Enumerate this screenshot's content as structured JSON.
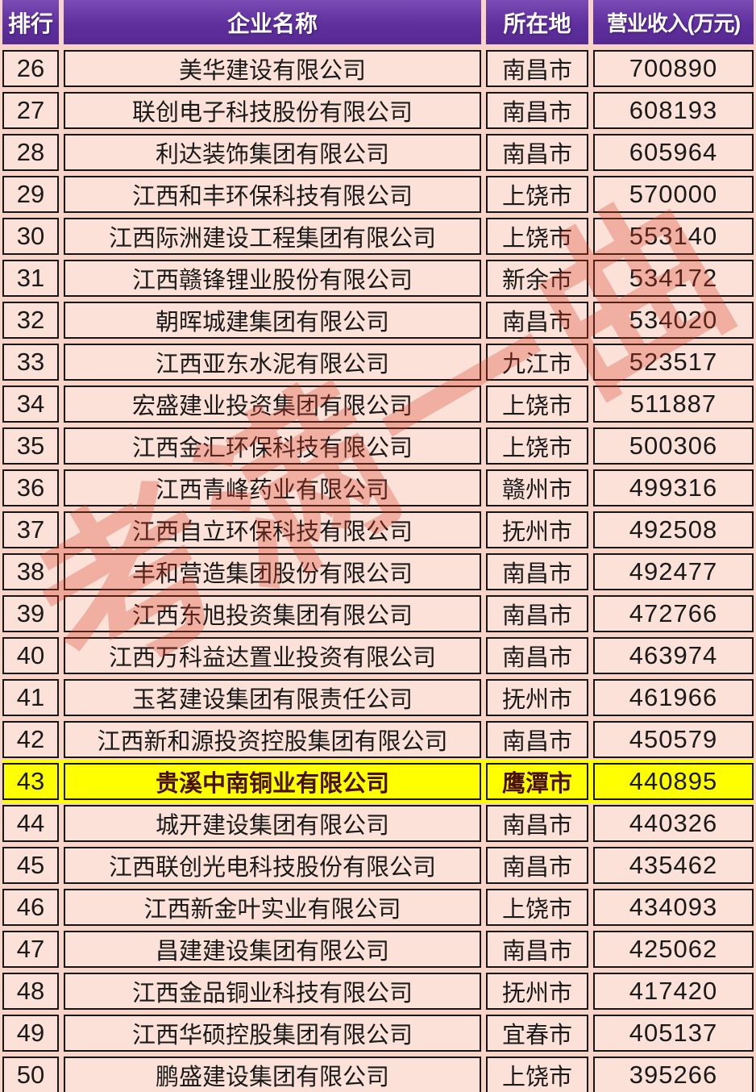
{
  "table": {
    "columns": [
      "排行",
      "企业名称",
      "所在地",
      "营业收入(万元)"
    ],
    "rows": [
      {
        "rank": "26",
        "company": "美华建设有限公司",
        "city": "南昌市",
        "revenue": "700890",
        "highlight": false
      },
      {
        "rank": "27",
        "company": "联创电子科技股份有限公司",
        "city": "南昌市",
        "revenue": "608193",
        "highlight": false
      },
      {
        "rank": "28",
        "company": "利达装饰集团有限公司",
        "city": "南昌市",
        "revenue": "605964",
        "highlight": false
      },
      {
        "rank": "29",
        "company": "江西和丰环保科技有限公司",
        "city": "上饶市",
        "revenue": "570000",
        "highlight": false
      },
      {
        "rank": "30",
        "company": "江西际洲建设工程集团有限公司",
        "city": "上饶市",
        "revenue": "553140",
        "highlight": false
      },
      {
        "rank": "31",
        "company": "江西赣锋锂业股份有限公司",
        "city": "新余市",
        "revenue": "534172",
        "highlight": false
      },
      {
        "rank": "32",
        "company": "朝晖城建集团有限公司",
        "city": "南昌市",
        "revenue": "534020",
        "highlight": false
      },
      {
        "rank": "33",
        "company": "江西亚东水泥有限公司",
        "city": "九江市",
        "revenue": "523517",
        "highlight": false
      },
      {
        "rank": "34",
        "company": "宏盛建业投资集团有限公司",
        "city": "上饶市",
        "revenue": "511887",
        "highlight": false
      },
      {
        "rank": "35",
        "company": "江西金汇环保科技有限公司",
        "city": "上饶市",
        "revenue": "500306",
        "highlight": false
      },
      {
        "rank": "36",
        "company": "江西青峰药业有限公司",
        "city": "赣州市",
        "revenue": "499316",
        "highlight": false
      },
      {
        "rank": "37",
        "company": "江西自立环保科技有限公司",
        "city": "抚州市",
        "revenue": "492508",
        "highlight": false
      },
      {
        "rank": "38",
        "company": "丰和营造集团股份有限公司",
        "city": "南昌市",
        "revenue": "492477",
        "highlight": false
      },
      {
        "rank": "39",
        "company": "江西东旭投资集团有限公司",
        "city": "南昌市",
        "revenue": "472766",
        "highlight": false
      },
      {
        "rank": "40",
        "company": "江西万科益达置业投资有限公司",
        "city": "南昌市",
        "revenue": "463974",
        "highlight": false
      },
      {
        "rank": "41",
        "company": "玉茗建设集团有限责任公司",
        "city": "抚州市",
        "revenue": "461966",
        "highlight": false
      },
      {
        "rank": "42",
        "company": "江西新和源投资控股集团有限公司",
        "city": "南昌市",
        "revenue": "450579",
        "highlight": false
      },
      {
        "rank": "43",
        "company": "贵溪中南铜业有限公司",
        "city": "鹰潭市",
        "revenue": "440895",
        "highlight": true
      },
      {
        "rank": "44",
        "company": "城开建设集团有限公司",
        "city": "南昌市",
        "revenue": "440326",
        "highlight": false
      },
      {
        "rank": "45",
        "company": "江西联创光电科技股份有限公司",
        "city": "南昌市",
        "revenue": "435462",
        "highlight": false
      },
      {
        "rank": "46",
        "company": "江西新金叶实业有限公司",
        "city": "上饶市",
        "revenue": "434093",
        "highlight": false
      },
      {
        "rank": "47",
        "company": "昌建建设集团有限公司",
        "city": "南昌市",
        "revenue": "425062",
        "highlight": false
      },
      {
        "rank": "48",
        "company": "江西金品铜业科技有限公司",
        "city": "抚州市",
        "revenue": "417420",
        "highlight": false
      },
      {
        "rank": "49",
        "company": "江西华硕控股集团有限公司",
        "city": "宜春市",
        "revenue": "405137",
        "highlight": false
      },
      {
        "rank": "50",
        "company": "鹏盛建设集团有限公司",
        "city": "上饶市",
        "revenue": "395266",
        "highlight": false
      }
    ]
  },
  "watermark": {
    "text": "考满一曲"
  },
  "colors": {
    "header_bg": "#5f2f9d",
    "header_text": "#ffffff",
    "row_bg": "#fbe1d7",
    "page_bg": "#f7d4c7",
    "cell_border": "#161616",
    "highlight_bg": "#ffff00",
    "watermark_red": "#db3a26"
  }
}
